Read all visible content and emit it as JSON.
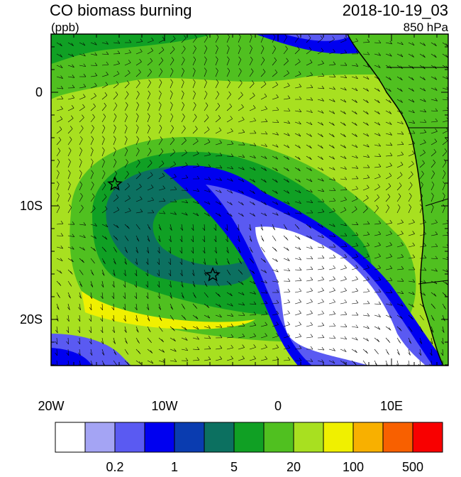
{
  "header": {
    "title": "CO biomass burning",
    "units": "(ppb)",
    "datetime": "2018-10-19_03",
    "level": "850 hPa"
  },
  "axes": {
    "y_labels": [
      "0",
      "10S",
      "20S"
    ],
    "x_labels": [
      "20W",
      "10W",
      "0",
      "10E"
    ]
  },
  "colorbar": {
    "colors": [
      "#ffffff",
      "#a4a4f4",
      "#5a5af2",
      "#0000f0",
      "#0a3cb0",
      "#0c7060",
      "#10a024",
      "#50c020",
      "#a8e020",
      "#f0f000",
      "#f8b000",
      "#f86000",
      "#f80000"
    ],
    "labels": [
      "0.2",
      "1",
      "5",
      "20",
      "100",
      "500"
    ]
  }
}
